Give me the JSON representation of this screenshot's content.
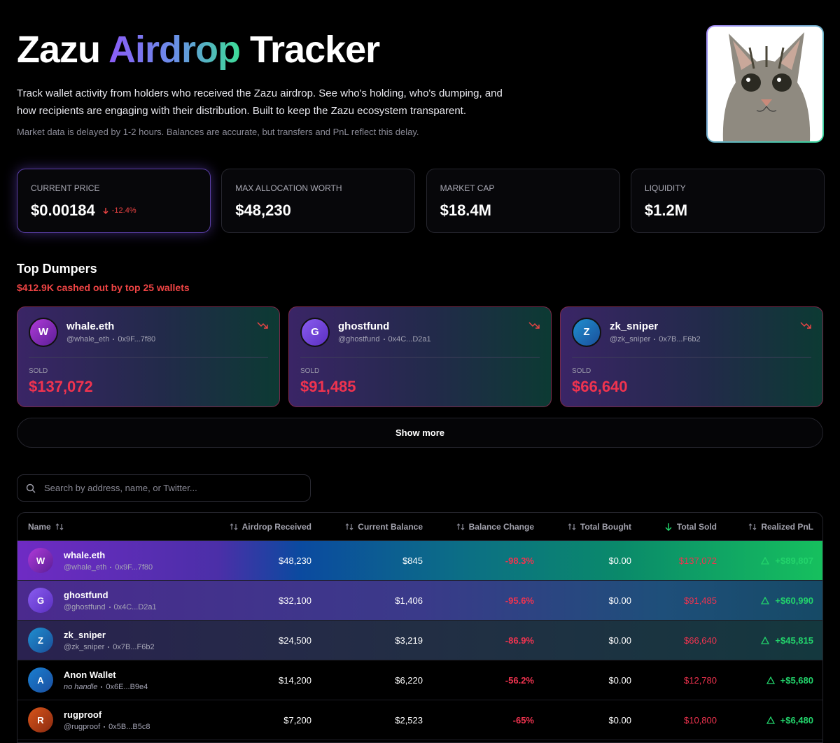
{
  "header": {
    "title_start": "Zazu",
    "title_highlight": "Airdrop",
    "title_end": "Tracker",
    "description": "Track wallet activity from holders who received the Zazu airdrop. See who's holding, who's dumping, and how recipients are engaging with their distribution. Built to keep the Zazu ecosystem transparent.",
    "note": "Market data is delayed by 1-2 hours. Balances are accurate, but transfers and PnL reflect this delay."
  },
  "stats": [
    {
      "label": "CURRENT PRICE",
      "value": "$0.00184",
      "change": "-12.4%"
    },
    {
      "label": "MAX ALLOCATION WORTH",
      "value": "$48,230"
    },
    {
      "label": "MARKET CAP",
      "value": "$18.4M"
    },
    {
      "label": "LIQUIDITY",
      "value": "$1.2M"
    }
  ],
  "top_dumpers": {
    "title": "Top Dumpers",
    "subtitle": "$412.9K cashed out by top 25 wallets",
    "cards": [
      {
        "initial": "W",
        "name": "whale.eth",
        "handle": "@whale_eth",
        "address": "0x9F...7f80",
        "sold_label": "SOLD",
        "sold": "$137,072"
      },
      {
        "initial": "G",
        "name": "ghostfund",
        "handle": "@ghostfund",
        "address": "0x4C...D2a1",
        "sold_label": "SOLD",
        "sold": "$91,485"
      },
      {
        "initial": "Z",
        "name": "zk_sniper",
        "handle": "@zk_sniper",
        "address": "0x7B...F6b2",
        "sold_label": "SOLD",
        "sold": "$66,640"
      }
    ],
    "show_more": "Show more"
  },
  "search": {
    "placeholder": "Search by address, name, or Twitter..."
  },
  "table": {
    "headers": [
      "Name",
      "Airdrop Received",
      "Current Balance",
      "Balance Change",
      "Total Bought",
      "Total Sold",
      "Realized PnL"
    ],
    "rows": [
      {
        "initial": "W",
        "name": "whale.eth",
        "handle": "@whale_eth",
        "address": "0x9F...7f80",
        "airdrop": "$48,230",
        "balance": "$845",
        "change": "-98.3%",
        "bought": "$0.00",
        "sold": "$137,072",
        "pnl": "+$89,807"
      },
      {
        "initial": "G",
        "name": "ghostfund",
        "handle": "@ghostfund",
        "address": "0x4C...D2a1",
        "airdrop": "$32,100",
        "balance": "$1,406",
        "change": "-95.6%",
        "bought": "$0.00",
        "sold": "$91,485",
        "pnl": "+$60,990"
      },
      {
        "initial": "Z",
        "name": "zk_sniper",
        "handle": "@zk_sniper",
        "address": "0x7B...F6b2",
        "airdrop": "$24,500",
        "balance": "$3,219",
        "change": "-86.9%",
        "bought": "$0.00",
        "sold": "$66,640",
        "pnl": "+$45,815"
      },
      {
        "initial": "A",
        "name": "Anon Wallet",
        "handle": "no handle",
        "address": "0x6E...B9e4",
        "airdrop": "$14,200",
        "balance": "$6,220",
        "change": "-56.2%",
        "bought": "$0.00",
        "sold": "$12,780",
        "pnl": "+$5,680"
      },
      {
        "initial": "R",
        "name": "rugproof",
        "handle": "@rugproof",
        "address": "0x5B...B5c8",
        "airdrop": "$7,200",
        "balance": "$2,523",
        "change": "-65%",
        "bought": "$0.00",
        "sold": "$10,800",
        "pnl": "+$6,480"
      }
    ]
  }
}
